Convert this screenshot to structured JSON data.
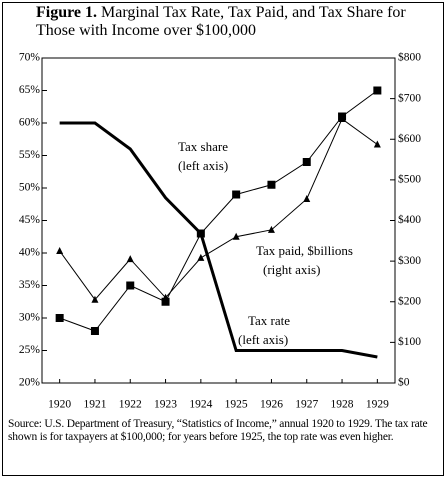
{
  "chart_data": {
    "type": "line",
    "figure_label": "Figure 1.",
    "title": "Marginal Tax Rate, Tax Paid, and Tax Share for Those with Income over $100,000",
    "categories": [
      "1920",
      "1921",
      "1922",
      "1923",
      "1924",
      "1925",
      "1926",
      "1927",
      "1928",
      "1929"
    ],
    "series": [
      {
        "color": "#000000",
        "marker": "none",
        "axis": "y",
        "values": [
          60,
          60,
          56,
          48.5,
          43,
          25,
          25,
          25,
          25,
          24
        ]
      },
      {
        "color": "#000000",
        "marker": "square",
        "axis": "y",
        "values": [
          30,
          28,
          35,
          32.5,
          43,
          49,
          50.5,
          54,
          61,
          65
        ]
      },
      {
        "color": "#000000",
        "marker": "triangle",
        "axis": "y2",
        "values": [
          325,
          205,
          305,
          210,
          308,
          360,
          377,
          453,
          650,
          587
        ]
      }
    ],
    "ylim": [
      20,
      70
    ],
    "yticks": [
      {
        "value": 20,
        "label": "20%"
      },
      {
        "value": 25,
        "label": "25%"
      },
      {
        "value": 30,
        "label": "30%"
      },
      {
        "value": 35,
        "label": "35%"
      },
      {
        "value": 40,
        "label": "40%"
      },
      {
        "value": 45,
        "label": "45%"
      },
      {
        "value": 50,
        "label": "50%"
      },
      {
        "value": 55,
        "label": "55%"
      },
      {
        "value": 60,
        "label": "60%"
      },
      {
        "value": 65,
        "label": "65%"
      },
      {
        "value": 70,
        "label": "70%"
      }
    ],
    "y2lim": [
      0,
      800
    ],
    "y2ticks": [
      {
        "value": 0,
        "label": "$0"
      },
      {
        "value": 100,
        "label": "$100"
      },
      {
        "value": 200,
        "label": "$200"
      },
      {
        "value": 300,
        "label": "$300"
      },
      {
        "value": 400,
        "label": "$400"
      },
      {
        "value": 500,
        "label": "$500"
      },
      {
        "value": 600,
        "label": "$600"
      },
      {
        "value": 700,
        "label": "$700"
      },
      {
        "value": 800,
        "label": "$800"
      }
    ],
    "annotations": [
      {
        "lines": [
          "Tax share",
          "(left axis)"
        ]
      },
      {
        "lines": [
          "Tax paid, $billions",
          "(right axis)"
        ]
      },
      {
        "lines": [
          "Tax rate",
          "(left axis)"
        ]
      }
    ],
    "source": "Source: U.S. Department of Treasury, “Statistics of Income,” annual 1920 to 1929. The tax rate shown is for taxpayers at $100,000; for years before 1925, the top rate was even higher.",
    "grid": false
  }
}
